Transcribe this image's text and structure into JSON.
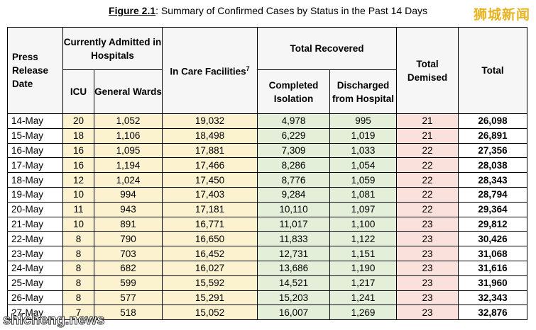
{
  "title": {
    "label": "Figure 2.1",
    "text": ": Summary of Confirmed Cases by Status in the Past 14 Days"
  },
  "watermarks": {
    "top": "狮城新闻",
    "bottom": "shicheng.news"
  },
  "table": {
    "header": {
      "date": "Press Release Date",
      "hospitals": "Currently Admitted in Hospitals",
      "icu": "ICU",
      "wards": "General Wards",
      "care": "In Care Facilities",
      "care_note": "7",
      "recovered": "Total Recovered",
      "isolation": "Completed Isolation",
      "discharged": "Discharged from Hospital",
      "demised": "Total Demised",
      "total": "Total"
    },
    "rows": [
      [
        "14-May",
        "20",
        "1,052",
        "19,032",
        "4,978",
        "995",
        "21",
        "26,098"
      ],
      [
        "15-May",
        "18",
        "1,106",
        "18,498",
        "6,229",
        "1,019",
        "21",
        "26,891"
      ],
      [
        "16-May",
        "16",
        "1,095",
        "17,881",
        "7,309",
        "1,033",
        "22",
        "27,356"
      ],
      [
        "17-May",
        "16",
        "1,194",
        "17,466",
        "8,286",
        "1,054",
        "22",
        "28,038"
      ],
      [
        "18-May",
        "12",
        "1,024",
        "17,450",
        "8,776",
        "1,059",
        "22",
        "28,343"
      ],
      [
        "19-May",
        "10",
        "994",
        "17,403",
        "9,284",
        "1,081",
        "22",
        "28,794"
      ],
      [
        "20-May",
        "11",
        "943",
        "17,181",
        "10,110",
        "1,097",
        "22",
        "29,364"
      ],
      [
        "21-May",
        "10",
        "891",
        "16,771",
        "11,017",
        "1,100",
        "23",
        "29,812"
      ],
      [
        "22-May",
        "8",
        "790",
        "16,650",
        "11,833",
        "1,122",
        "23",
        "30,426"
      ],
      [
        "23-May",
        "8",
        "703",
        "16,452",
        "12,731",
        "1,151",
        "23",
        "31,068"
      ],
      [
        "24-May",
        "8",
        "682",
        "16,027",
        "13,686",
        "1,190",
        "23",
        "31,616"
      ],
      [
        "25-May",
        "8",
        "599",
        "15,592",
        "14,521",
        "1,217",
        "23",
        "31,960"
      ],
      [
        "26-May",
        "8",
        "577",
        "15,291",
        "15,203",
        "1,241",
        "23",
        "32,343"
      ],
      [
        "27-May",
        "7",
        "518",
        "15,052",
        "16,007",
        "1,269",
        "23",
        "32,876"
      ]
    ]
  }
}
